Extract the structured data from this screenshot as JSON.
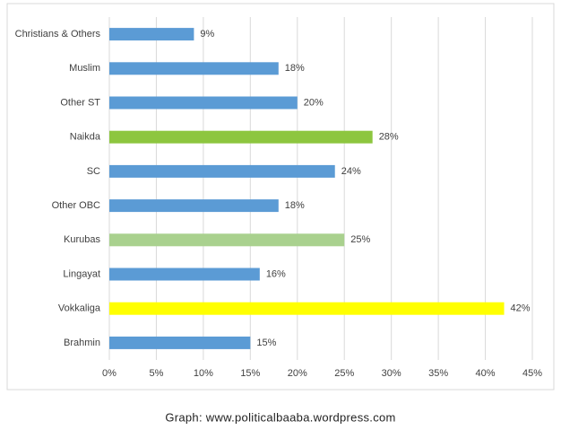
{
  "chart_data": {
    "type": "bar",
    "orientation": "horizontal",
    "categories": [
      "Christians & Others",
      "Muslim",
      "Other ST",
      "Naikda",
      "SC",
      "Other OBC",
      "Kurubas",
      "Lingayat",
      "Vokkaliga",
      "Brahmin"
    ],
    "values": [
      9,
      18,
      20,
      28,
      24,
      18,
      25,
      16,
      42,
      15
    ],
    "value_labels": [
      "9%",
      "18%",
      "20%",
      "28%",
      "24%",
      "18%",
      "25%",
      "16%",
      "42%",
      "15%"
    ],
    "colors": [
      "#5b9bd5",
      "#5b9bd5",
      "#5b9bd5",
      "#8dc63f",
      "#5b9bd5",
      "#5b9bd5",
      "#a9d18e",
      "#5b9bd5",
      "#ffff00",
      "#5b9bd5"
    ],
    "xlim": [
      0,
      45
    ],
    "xticks": [
      {
        "value": 0,
        "label": "0%"
      },
      {
        "value": 5,
        "label": "5%"
      },
      {
        "value": 10,
        "label": "10%"
      },
      {
        "value": 15,
        "label": "15%"
      },
      {
        "value": 20,
        "label": "20%"
      },
      {
        "value": 25,
        "label": "25%"
      },
      {
        "value": 30,
        "label": "30%"
      },
      {
        "value": 35,
        "label": "35%"
      },
      {
        "value": 40,
        "label": "40%"
      },
      {
        "value": 45,
        "label": "45%"
      }
    ],
    "grid": true,
    "caption": "Graph: www.politicalbaaba.wordpress.com"
  }
}
